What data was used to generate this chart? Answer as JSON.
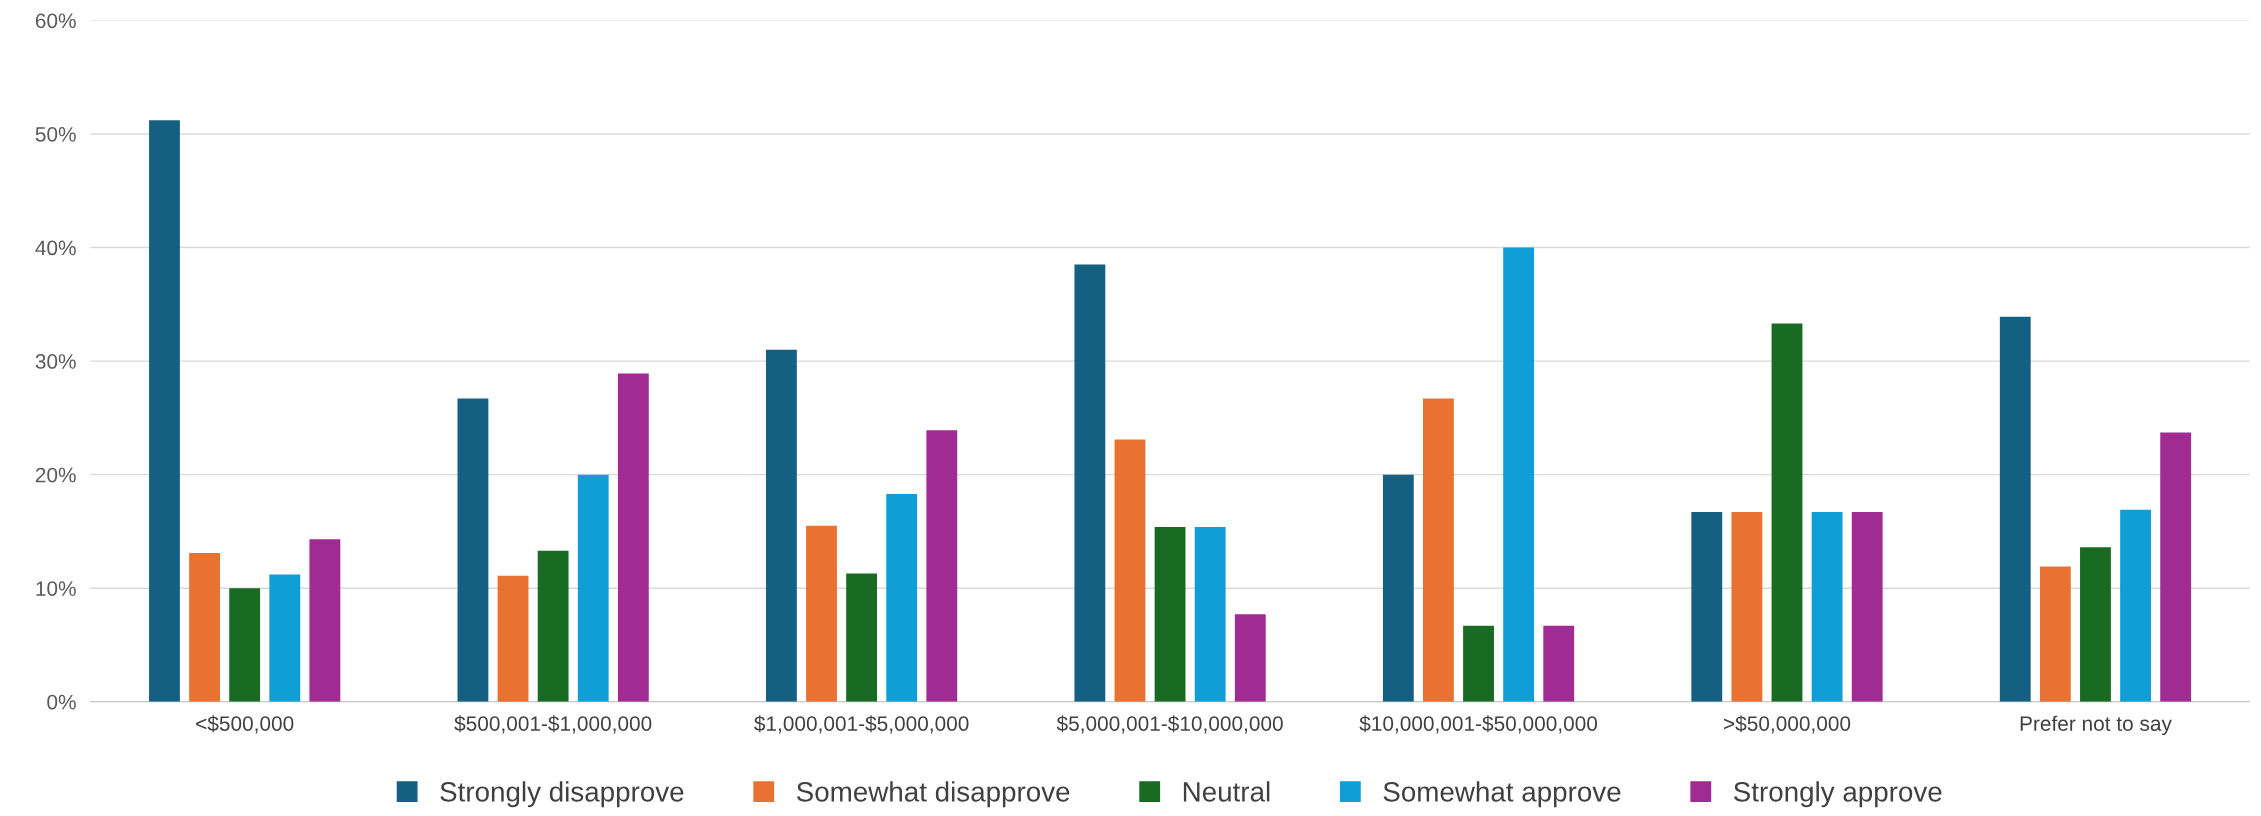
{
  "chart_data": {
    "type": "bar",
    "categories": [
      "<$500,000",
      "$500,001-$1,000,000",
      "$1,000,001-$5,000,000",
      "$5,000,001-$10,000,000",
      "$10,000,001-$50,000,000",
      ">$50,000,000",
      "Prefer not to say"
    ],
    "series": [
      {
        "name": "Strongly disapprove",
        "color": "#156082",
        "values": [
          51.2,
          26.7,
          31.0,
          38.5,
          20.0,
          16.7,
          33.9
        ]
      },
      {
        "name": "Somewhat disapprove",
        "color": "#e97132",
        "values": [
          13.1,
          11.1,
          15.5,
          23.1,
          26.7,
          16.7,
          11.9
        ]
      },
      {
        "name": "Neutral",
        "color": "#196b24",
        "values": [
          10.0,
          13.3,
          11.3,
          15.4,
          6.7,
          33.3,
          13.6
        ]
      },
      {
        "name": "Somewhat approve",
        "color": "#0f9ed5",
        "values": [
          11.2,
          20.0,
          18.3,
          15.4,
          40.0,
          16.7,
          16.9
        ]
      },
      {
        "name": "Strongly approve",
        "color": "#a02b93",
        "values": [
          14.3,
          28.9,
          23.9,
          7.7,
          6.7,
          16.7,
          23.7
        ]
      }
    ],
    "ylim": [
      0,
      60
    ],
    "yticks": [
      {
        "value": 0,
        "label": "0%"
      },
      {
        "value": 10,
        "label": "10%"
      },
      {
        "value": 20,
        "label": "20%"
      },
      {
        "value": 30,
        "label": "30%"
      },
      {
        "value": 40,
        "label": "40%"
      },
      {
        "value": 50,
        "label": "50%"
      },
      {
        "value": 60,
        "label": "60%"
      }
    ],
    "grid": "y",
    "legend": "bottom"
  }
}
